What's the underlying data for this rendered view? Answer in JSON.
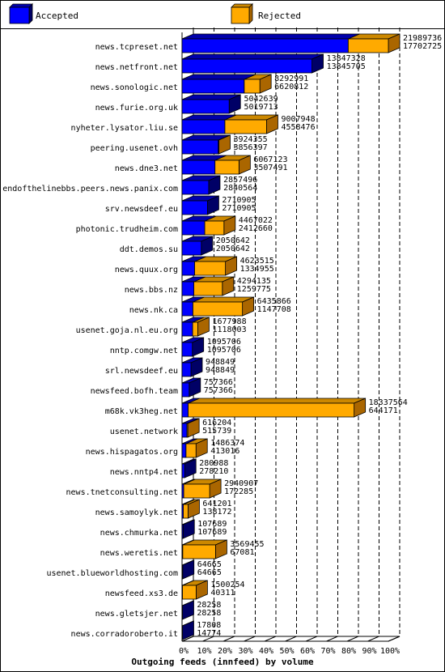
{
  "chart_data": {
    "type": "bar",
    "title": "Outgoing feeds (innfeed) by volume",
    "legend": {
      "position": "top",
      "entries": [
        {
          "name": "Accepted",
          "color": "#0000ff"
        },
        {
          "name": "Rejected",
          "color": "#ffaa00"
        }
      ]
    },
    "xticks": [
      "0%",
      "10%",
      "20%",
      "30%",
      "40%",
      "50%",
      "60%",
      "70%",
      "80%",
      "90%",
      "100%"
    ],
    "xlim": [
      0,
      21989736
    ],
    "categories": [
      {
        "label": "news.tcpreset.net",
        "total": 21989736,
        "accepted": 17702725,
        "total_label": "21989736",
        "accepted_label": "17702725"
      },
      {
        "label": "news.netfront.net",
        "total": 13847328,
        "accepted": 13845705,
        "total_label": "13847328",
        "accepted_label": "13845705"
      },
      {
        "label": "news.sonologic.net",
        "total": 8292991,
        "accepted": 6620812,
        "total_label": "8292991",
        "accepted_label": "6620812"
      },
      {
        "label": "news.furie.org.uk",
        "total": 5042639,
        "accepted": 5019713,
        "total_label": "5042639",
        "accepted_label": "5019713"
      },
      {
        "label": "nyheter.lysator.liu.se",
        "total": 9007948,
        "accepted": 4558476,
        "total_label": "9007948",
        "accepted_label": "4558476"
      },
      {
        "label": "peering.usenet.ovh",
        "total": 3924355,
        "accepted": 3856397,
        "total_label": "3924355",
        "accepted_label": "3856397"
      },
      {
        "label": "news.dne3.net",
        "total": 6067123,
        "accepted": 3507491,
        "total_label": "6067123",
        "accepted_label": "3507491"
      },
      {
        "label": "endofthelinebbs.peers.news.panix.com",
        "total": 2857496,
        "accepted": 2840564,
        "total_label": "2857496",
        "accepted_label": "2840564"
      },
      {
        "label": "srv.newsdeef.eu",
        "total": 2710905,
        "accepted": 2710905,
        "total_label": "2710905",
        "accepted_label": "2710905"
      },
      {
        "label": "photonic.trudheim.com",
        "total": 4467022,
        "accepted": 2412660,
        "total_label": "4467022",
        "accepted_label": "2412660"
      },
      {
        "label": "ddt.demos.su",
        "total": 2050642,
        "accepted": 2050642,
        "total_label": "2050642",
        "accepted_label": "2050642"
      },
      {
        "label": "news.quux.org",
        "total": 4623515,
        "accepted": 1334955,
        "total_label": "4623515",
        "accepted_label": "1334955"
      },
      {
        "label": "news.bbs.nz",
        "total": 4294135,
        "accepted": 1259775,
        "total_label": "4294135",
        "accepted_label": "1259775"
      },
      {
        "label": "news.nk.ca",
        "total": 6435866,
        "accepted": 1147708,
        "total_label": "6435866",
        "accepted_label": "1147708"
      },
      {
        "label": "usenet.goja.nl.eu.org",
        "total": 1677988,
        "accepted": 1118003,
        "total_label": "1677988",
        "accepted_label": "1118003"
      },
      {
        "label": "nntp.comgw.net",
        "total": 1095706,
        "accepted": 1095706,
        "total_label": "1095706",
        "accepted_label": "1095706"
      },
      {
        "label": "srl.newsdeef.eu",
        "total": 948849,
        "accepted": 948849,
        "total_label": "948849",
        "accepted_label": "948849"
      },
      {
        "label": "newsfeed.bofh.team",
        "total": 757366,
        "accepted": 757366,
        "total_label": "757366",
        "accepted_label": "757366"
      },
      {
        "label": "m68k.vk3heg.net",
        "total": 18337564,
        "accepted": 644171,
        "total_label": "18337564",
        "accepted_label": "644171"
      },
      {
        "label": "usenet.network",
        "total": 616204,
        "accepted": 515739,
        "total_label": "616204",
        "accepted_label": "515739"
      },
      {
        "label": "news.hispagatos.org",
        "total": 1486374,
        "accepted": 413016,
        "total_label": "1486374",
        "accepted_label": "413016"
      },
      {
        "label": "news.nntp4.net",
        "total": 280988,
        "accepted": 278210,
        "total_label": "280988",
        "accepted_label": "278210"
      },
      {
        "label": "news.tnetconsulting.net",
        "total": 2940907,
        "accepted": 172285,
        "total_label": "2940907",
        "accepted_label": "172285"
      },
      {
        "label": "news.samoylyk.net",
        "total": 641201,
        "accepted": 138172,
        "total_label": "641201",
        "accepted_label": "138172"
      },
      {
        "label": "news.chmurka.net",
        "total": 107689,
        "accepted": 107689,
        "total_label": "107689",
        "accepted_label": "107689"
      },
      {
        "label": "news.weretis.net",
        "total": 3569455,
        "accepted": 67081,
        "total_label": "3569455",
        "accepted_label": "67081"
      },
      {
        "label": "usenet.blueworldhosting.com",
        "total": 64665,
        "accepted": 64665,
        "total_label": "64665",
        "accepted_label": "64665"
      },
      {
        "label": "newsfeed.xs3.de",
        "total": 1500254,
        "accepted": 40311,
        "total_label": "1500254",
        "accepted_label": "40311"
      },
      {
        "label": "news.gletsjer.net",
        "total": 28258,
        "accepted": 28258,
        "total_label": "28258",
        "accepted_label": "28258"
      },
      {
        "label": "news.corradoroberto.it",
        "total": 17808,
        "accepted": 14774,
        "total_label": "17808",
        "accepted_label": "14774"
      }
    ]
  }
}
